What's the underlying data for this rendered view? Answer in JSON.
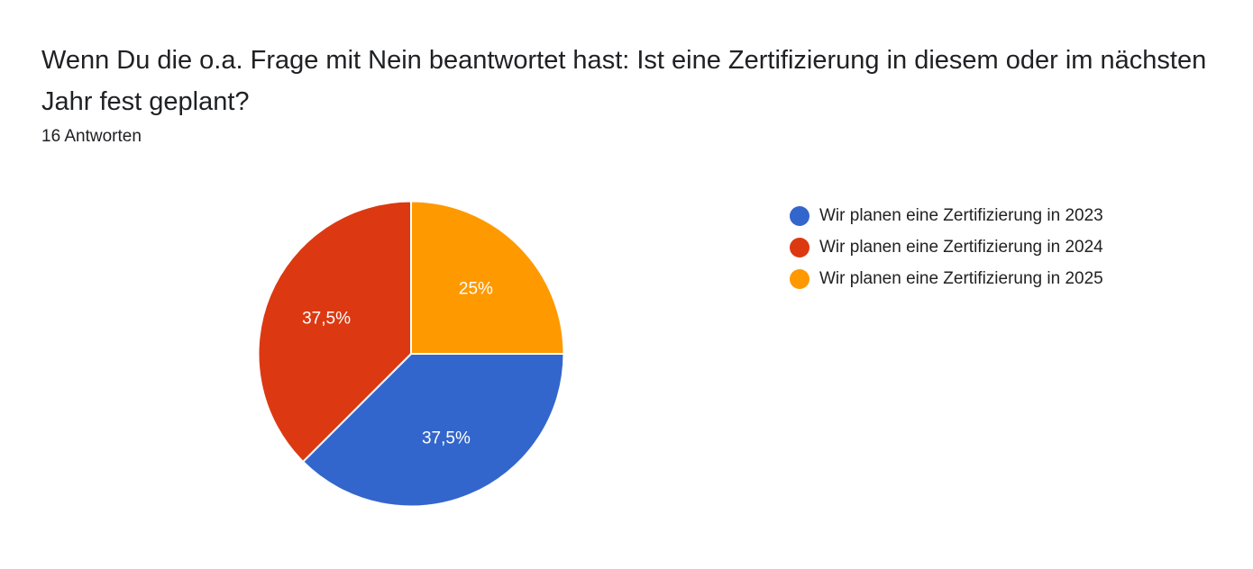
{
  "question": {
    "title": "Wenn Du die o.a. Frage mit Nein beantwortet hast: Ist eine Zertifizierung in diesem oder im nächsten Jahr fest geplant?",
    "response_count": "16 Antworten"
  },
  "chart_data": {
    "type": "pie",
    "title": "",
    "legend_position": "right",
    "slices": [
      {
        "label": "Wir planen eine Zertifizierung in 2023",
        "value": 37.5,
        "display": "37,5%",
        "color": "#3366cc"
      },
      {
        "label": "Wir planen eine Zertifizierung in 2024",
        "value": 37.5,
        "display": "37,5%",
        "color": "#dc3912"
      },
      {
        "label": "Wir planen eine Zertifizierung in 2025",
        "value": 25,
        "display": "25%",
        "color": "#ff9900"
      }
    ]
  }
}
